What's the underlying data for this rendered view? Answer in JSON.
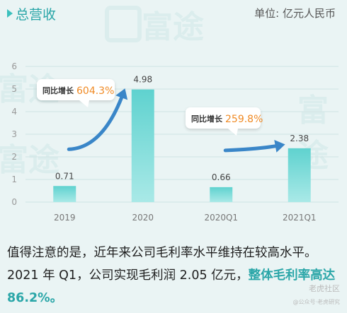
{
  "header": {
    "title": "总营收",
    "unit": "单位: 亿元人民币"
  },
  "watermark": {
    "text": "富途"
  },
  "chart_data": {
    "type": "bar",
    "categories": [
      "2019",
      "2020",
      "2020Q1",
      "2021Q1"
    ],
    "values": [
      0.71,
      4.98,
      0.66,
      2.38
    ],
    "value_labels": [
      "0.71",
      "4.98",
      "0.66",
      "2.38"
    ],
    "ylim": [
      0,
      6
    ],
    "yticks": [
      "0",
      "1",
      "2",
      "3",
      "4",
      "5",
      "6"
    ],
    "grid": true,
    "bar_color": "#7fdbd8",
    "annotations": [
      {
        "label": "同比增长",
        "value": "604.3%"
      },
      {
        "label": "同比增长",
        "value": "259.8%"
      }
    ]
  },
  "body_text": {
    "part1": "值得注意的是，近年来公司毛利率水平维持在较高水平。2021 年 Q1，公司实现毛利润 2.05 亿元，",
    "highlight": "整体毛利率高达 86.2%。"
  },
  "logo": {
    "name": "老虎社区",
    "sub": "@公众号·老虎研究"
  },
  "colors": {
    "accent": "#2aa6a8",
    "orange": "#f08a24",
    "arrow": "#3a86c8"
  }
}
